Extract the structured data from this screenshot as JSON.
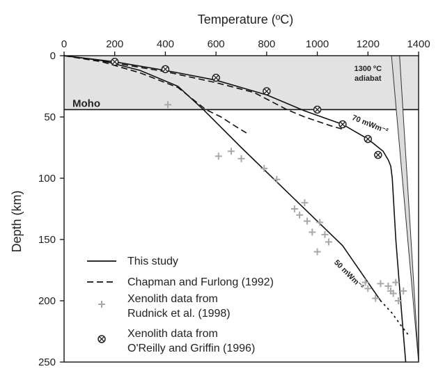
{
  "chart_data": {
    "type": "line",
    "title": "",
    "xlabel": "Temperature (ºC)",
    "ylabel": "Depth (km)",
    "x_axis_position": "top",
    "y_axis_inverted": true,
    "xlim": [
      0,
      1400
    ],
    "ylim": [
      0,
      250
    ],
    "xticks": [
      0,
      200,
      400,
      600,
      800,
      1000,
      1200,
      1400
    ],
    "yticks": [
      0,
      50,
      100,
      150,
      200,
      250
    ],
    "grid": false,
    "moho": {
      "label": "Moho",
      "depth": 44
    },
    "crust_fill_color": "#e2e2e2",
    "adiabat": {
      "label_line1": "1300 ºC",
      "label_line2": "adiabat",
      "left_edge": [
        {
          "x": 1293,
          "y": 0
        },
        {
          "x": 1400,
          "y": 250
        }
      ],
      "right_edge": [
        {
          "x": 1325,
          "y": 0
        },
        {
          "x": 1400,
          "y": 250
        }
      ],
      "fill_color": "#dcdcdc"
    },
    "series": [
      {
        "name": "This study",
        "style": "solid",
        "curves": [
          {
            "label": "70 mWm⁻²",
            "points": [
              [
                0,
                0
              ],
              [
                200,
                5
              ],
              [
                400,
                12
              ],
              [
                600,
                20
              ],
              [
                800,
                32
              ],
              [
                950,
                45
              ],
              [
                1100,
                56
              ],
              [
                1200,
                68
              ],
              [
                1260,
                78
              ],
              [
                1280,
                85
              ],
              [
                1290,
                90
              ],
              [
                1296,
                100
              ],
              [
                1310,
                150
              ],
              [
                1329,
                200
              ],
              [
                1349,
                250
              ]
            ]
          },
          {
            "label": "50 mWm⁻²",
            "points": [
              [
                0,
                0
              ],
              [
                150,
                4
              ],
              [
                300,
                12
              ],
              [
                450,
                25
              ],
              [
                550,
                44
              ],
              [
                700,
                75
              ],
              [
                900,
                115
              ],
              [
                1100,
                155
              ],
              [
                1250,
                200
              ]
            ],
            "extension_dotted": [
              [
                1250,
                200
              ],
              [
                1295,
                210
              ],
              [
                1330,
                220
              ],
              [
                1360,
                228
              ]
            ]
          }
        ]
      },
      {
        "name": "Chapman and Furlong (1992)",
        "style": "dashed",
        "curves": [
          {
            "points": [
              [
                0,
                0
              ],
              [
                200,
                6
              ],
              [
                400,
                13
              ],
              [
                600,
                22
              ],
              [
                750,
                30
              ],
              [
                880,
                44
              ],
              [
                950,
                50
              ],
              [
                1050,
                57
              ],
              [
                1100,
                60
              ]
            ]
          },
          {
            "points": [
              [
                0,
                0
              ],
              [
                150,
                5
              ],
              [
                300,
                14
              ],
              [
                450,
                26
              ],
              [
                560,
                44
              ],
              [
                620,
                50
              ],
              [
                680,
                58
              ],
              [
                720,
                63
              ]
            ]
          }
        ]
      },
      {
        "name": "Xenolith data from Rudnick et al. (1998)",
        "marker": "plus",
        "color": "#a8a8a8",
        "points": [
          [
            410,
            40
          ],
          [
            610,
            82
          ],
          [
            660,
            78
          ],
          [
            700,
            84
          ],
          [
            790,
            92
          ],
          [
            840,
            101
          ],
          [
            910,
            125
          ],
          [
            930,
            130
          ],
          [
            960,
            135
          ],
          [
            950,
            120
          ],
          [
            980,
            144
          ],
          [
            1010,
            136
          ],
          [
            1030,
            146
          ],
          [
            1045,
            152
          ],
          [
            1000,
            160
          ],
          [
            1190,
            185
          ],
          [
            1200,
            190
          ],
          [
            1230,
            198
          ],
          [
            1250,
            186
          ],
          [
            1280,
            188
          ],
          [
            1290,
            192
          ],
          [
            1300,
            194
          ],
          [
            1310,
            185
          ],
          [
            1320,
            200
          ],
          [
            1340,
            192
          ]
        ]
      },
      {
        "name": "Xenolith data from O'Reilly and Griffin (1996)",
        "marker": "circled-x",
        "color": "#222222",
        "points": [
          [
            200,
            5
          ],
          [
            400,
            11
          ],
          [
            600,
            18
          ],
          [
            800,
            29
          ],
          [
            1000,
            44
          ],
          [
            1100,
            56
          ],
          [
            1200,
            68
          ],
          [
            1240,
            81
          ]
        ]
      }
    ],
    "legend": {
      "placement": "bottom-left",
      "items": [
        {
          "symbol": "solid",
          "line1": "This study",
          "line2": ""
        },
        {
          "symbol": "dashed",
          "line1": "Chapman and Furlong (1992)",
          "line2": ""
        },
        {
          "symbol": "plus",
          "line1": "Xenolith data from",
          "line2": "Rudnick et al. (1998)"
        },
        {
          "symbol": "circled-x",
          "line1": "Xenolith data from",
          "line2": "O'Reilly and Griffin (1996)"
        }
      ]
    }
  }
}
